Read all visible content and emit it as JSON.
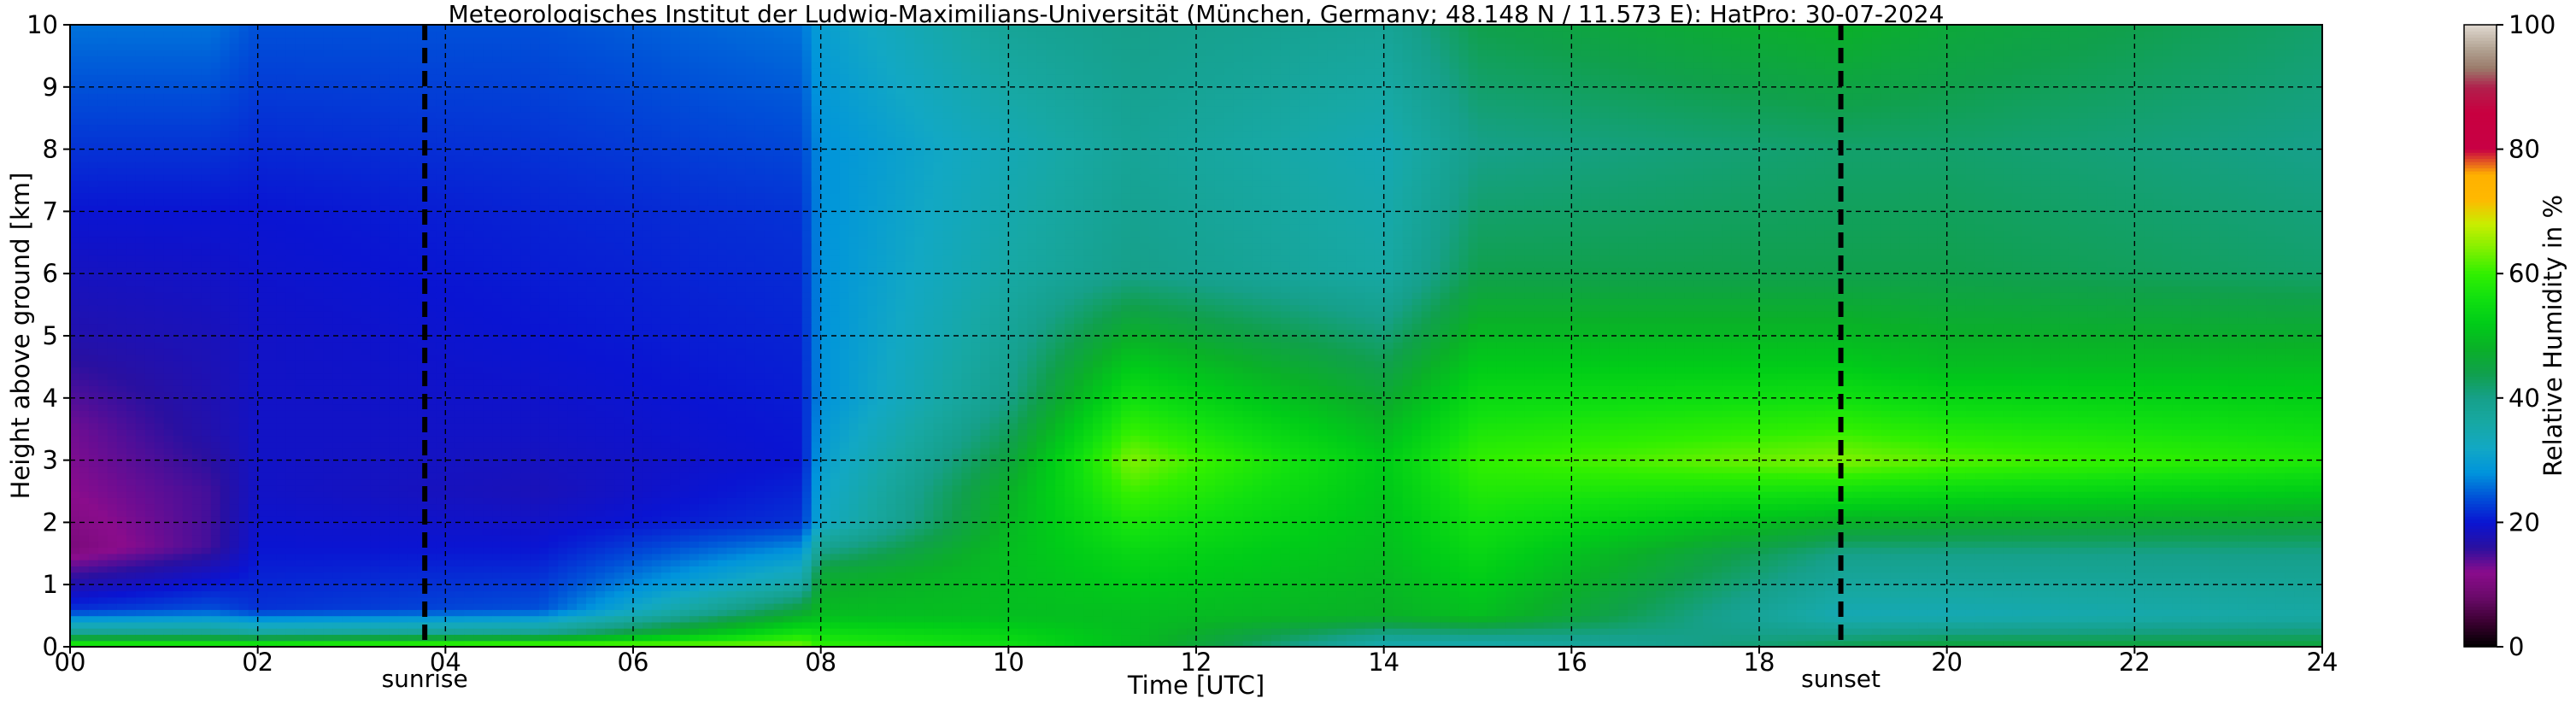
{
  "chart_data": {
    "type": "heatmap",
    "title": "Meteorologisches Institut der Ludwig-Maximilians-Universität (München, Germany; 48.148 N / 11.573 E):    HatPro: 30-07-2024",
    "xlabel": "Time [UTC]",
    "ylabel": "Height above ground [km]",
    "xlim": [
      0,
      24
    ],
    "ylim": [
      0,
      10
    ],
    "x_ticks": [
      0,
      2,
      4,
      6,
      8,
      10,
      12,
      14,
      16,
      18,
      20,
      22,
      24
    ],
    "x_tick_labels": [
      "00",
      "02",
      "04",
      "06",
      "08",
      "10",
      "12",
      "14",
      "16",
      "18",
      "20",
      "22",
      "24"
    ],
    "y_ticks": [
      0,
      1,
      2,
      3,
      4,
      5,
      6,
      7,
      8,
      9,
      10
    ],
    "y_tick_labels": [
      "0",
      "1",
      "2",
      "3",
      "4",
      "5",
      "6",
      "7",
      "8",
      "9",
      "10"
    ],
    "grid": true,
    "markers": [
      {
        "label": "sunrise",
        "x": 3.78
      },
      {
        "label": "sunset",
        "x": 18.87
      }
    ],
    "colorbar": {
      "label": "Relative Humidity in %",
      "range": [
        0,
        100
      ],
      "ticks": [
        0,
        20,
        40,
        60,
        80,
        100
      ],
      "tick_labels": [
        "0",
        "20",
        "40",
        "60",
        "80",
        "100"
      ],
      "stops": [
        [
          0,
          "#000000"
        ],
        [
          4,
          "#3a0030"
        ],
        [
          8,
          "#6a0a6a"
        ],
        [
          12,
          "#8a0c8c"
        ],
        [
          16,
          "#2a10a0"
        ],
        [
          20,
          "#0a14d2"
        ],
        [
          24,
          "#0050d8"
        ],
        [
          28,
          "#0094dc"
        ],
        [
          32,
          "#12a8c4"
        ],
        [
          36,
          "#17a8a4"
        ],
        [
          40,
          "#16a08a"
        ],
        [
          44,
          "#10a04c"
        ],
        [
          48,
          "#0ab028"
        ],
        [
          52,
          "#00cc18"
        ],
        [
          56,
          "#10e010"
        ],
        [
          60,
          "#30f000"
        ],
        [
          64,
          "#80f000"
        ],
        [
          68,
          "#c8ee00"
        ],
        [
          72,
          "#ffb800"
        ],
        [
          76,
          "#ffb000"
        ],
        [
          80,
          "#c80044"
        ],
        [
          86,
          "#c80040"
        ],
        [
          90,
          "#b0204c"
        ],
        [
          93,
          "#9a7a6a"
        ],
        [
          96,
          "#b0a090"
        ],
        [
          100,
          "#e0d8d0"
        ]
      ]
    },
    "humidity_profile_keypoints": [
      {
        "t": 0.0,
        "rh": {
          "0": 62,
          "0.2": 40,
          "0.6": 22,
          "1.6": 10,
          "2.5": 12,
          "3.5": 13,
          "5": 17,
          "7": 20,
          "10": 26
        }
      },
      {
        "t": 1.5,
        "rh": {
          "0": 62,
          "0.2": 40,
          "0.6": 24,
          "1.6": 15,
          "2.5": 15,
          "3.5": 17,
          "5": 18,
          "7": 20,
          "10": 26
        }
      },
      {
        "t": 2.0,
        "rh": {
          "0": 62,
          "0.2": 38,
          "0.6": 22,
          "1.6": 20,
          "2.5": 19,
          "3.5": 19,
          "5": 19,
          "7": 20,
          "10": 24
        }
      },
      {
        "t": 5.0,
        "rh": {
          "0": 66,
          "0.2": 40,
          "0.6": 24,
          "1.6": 20,
          "2.5": 18,
          "3.5": 19,
          "5": 20,
          "7": 21,
          "10": 24
        }
      },
      {
        "t": 7.8,
        "rh": {
          "0": 64,
          "0.5": 48,
          "1.0": 36,
          "2.0": 22,
          "3.0": 20,
          "5": 21,
          "7": 22,
          "10": 26
        }
      },
      {
        "t": 8.0,
        "rh": {
          "0": 60,
          "0.5": 50,
          "1.2": 46,
          "2.0": 32,
          "4.0": 28,
          "6": 28,
          "8": 28,
          "10": 30
        }
      },
      {
        "t": 10.0,
        "rh": {
          "0": 56,
          "0.5": 50,
          "1.5": 50,
          "2.5": 48,
          "4.0": 40,
          "6": 36,
          "8": 34,
          "10": 38
        }
      },
      {
        "t": 11.3,
        "rh": {
          "0": 50,
          "0.5": 50,
          "1.5": 54,
          "3.0": 64,
          "4.5": 52,
          "6": 40,
          "8": 38,
          "10": 40
        }
      },
      {
        "t": 14.0,
        "rh": {
          "0": 34,
          "0.5": 48,
          "1.5": 50,
          "3.0": 52,
          "4.5": 44,
          "6": 36,
          "8": 34,
          "10": 38
        }
      },
      {
        "t": 15.0,
        "rh": {
          "0": 34,
          "0.5": 50,
          "2.0": 56,
          "3.0": 60,
          "4.5": 52,
          "6": 44,
          "8": 40,
          "10": 44
        }
      },
      {
        "t": 18.9,
        "rh": {
          "0": 44,
          "0.5": 34,
          "1.5": 40,
          "3.0": 64,
          "4.5": 52,
          "6": 44,
          "8": 42,
          "10": 48
        }
      },
      {
        "t": 20.0,
        "rh": {
          "0": 46,
          "0.5": 34,
          "1.5": 40,
          "3.0": 62,
          "4.5": 50,
          "6": 44,
          "8": 42,
          "10": 46
        }
      },
      {
        "t": 24.0,
        "rh": {
          "0": 46,
          "0.5": 36,
          "1.5": 40,
          "3.0": 58,
          "4.5": 50,
          "6": 42,
          "8": 40,
          "10": 42
        }
      }
    ]
  }
}
